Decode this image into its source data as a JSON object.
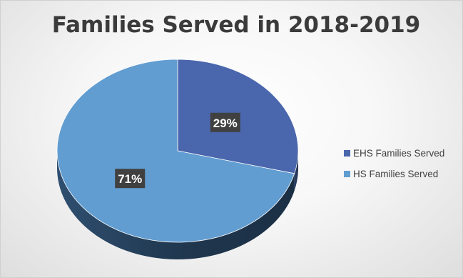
{
  "chart_data": {
    "type": "pie",
    "title": "Families Served in 2018-2019",
    "series": [
      {
        "name": "EHS Families Served",
        "value": 29,
        "label": "29%",
        "color": "#4A66AC"
      },
      {
        "name": "HS Families Served",
        "value": 71,
        "label": "71%",
        "color": "#629DD1"
      }
    ],
    "legend_position": "right",
    "style": "3d",
    "data_label_background": "#404040"
  }
}
